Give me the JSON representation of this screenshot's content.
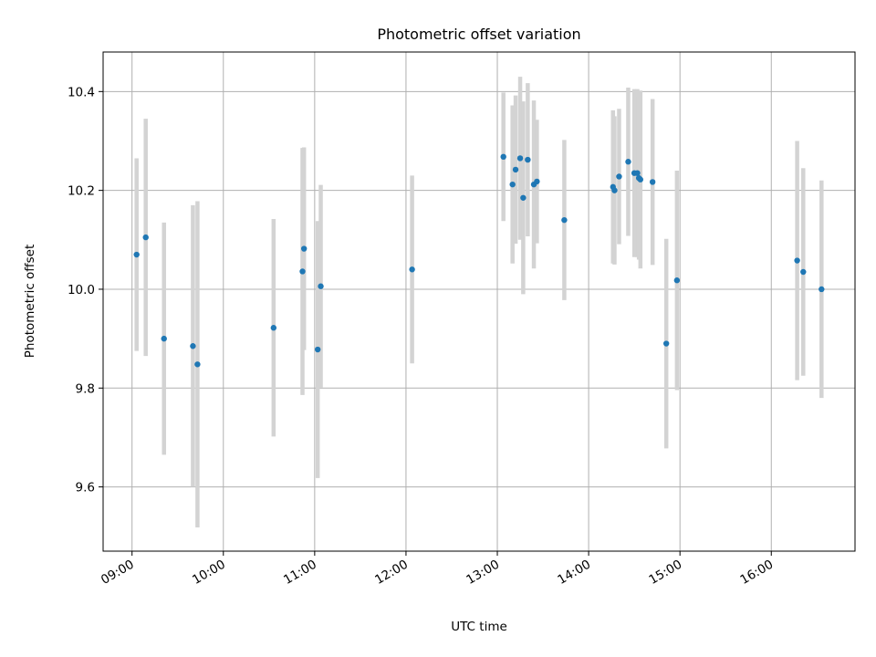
{
  "chart_data": {
    "type": "scatter",
    "title": "Photometric offset variation",
    "xlabel": "UTC time",
    "ylabel": "Photometric offset",
    "x_ticks": [
      "09:00",
      "10:00",
      "11:00",
      "12:00",
      "13:00",
      "14:00",
      "15:00",
      "16:00"
    ],
    "y_ticks": [
      "9.6",
      "9.8",
      "10.0",
      "10.2",
      "10.4"
    ],
    "xlim": [
      "08:41",
      "16:55"
    ],
    "ylim": [
      9.47,
      10.48
    ],
    "grid": true,
    "marker_color": "#1f77b4",
    "errorbar_color": "#d3d3d3",
    "points": [
      {
        "x": "09:03",
        "y": 10.07,
        "err": 0.195
      },
      {
        "x": "09:09",
        "y": 10.105,
        "err": 0.24
      },
      {
        "x": "09:21",
        "y": 9.9,
        "err": 0.235
      },
      {
        "x": "09:40",
        "y": 9.885,
        "err": 0.285
      },
      {
        "x": "09:43",
        "y": 9.848,
        "err": 0.33
      },
      {
        "x": "10:33",
        "y": 9.922,
        "err": 0.22
      },
      {
        "x": "10:52",
        "y": 10.036,
        "err": 0.25
      },
      {
        "x": "10:53",
        "y": 10.082,
        "err": 0.205
      },
      {
        "x": "11:02",
        "y": 9.878,
        "err": 0.26
      },
      {
        "x": "11:04",
        "y": 10.006,
        "err": 0.205
      },
      {
        "x": "12:04",
        "y": 10.04,
        "err": 0.19
      },
      {
        "x": "13:04",
        "y": 10.268,
        "err": 0.13
      },
      {
        "x": "13:10",
        "y": 10.212,
        "err": 0.16
      },
      {
        "x": "13:12",
        "y": 10.242,
        "err": 0.15
      },
      {
        "x": "13:15",
        "y": 10.265,
        "err": 0.165
      },
      {
        "x": "13:17",
        "y": 10.185,
        "err": 0.195
      },
      {
        "x": "13:20",
        "y": 10.262,
        "err": 0.155
      },
      {
        "x": "13:24",
        "y": 10.212,
        "err": 0.17
      },
      {
        "x": "13:26",
        "y": 10.218,
        "err": 0.125
      },
      {
        "x": "13:44",
        "y": 10.14,
        "err": 0.162
      },
      {
        "x": "14:16",
        "y": 10.207,
        "err": 0.155
      },
      {
        "x": "14:17",
        "y": 10.2,
        "err": 0.15
      },
      {
        "x": "14:20",
        "y": 10.228,
        "err": 0.137
      },
      {
        "x": "14:26",
        "y": 10.258,
        "err": 0.15
      },
      {
        "x": "14:30",
        "y": 10.235,
        "err": 0.17
      },
      {
        "x": "14:32",
        "y": 10.235,
        "err": 0.17
      },
      {
        "x": "14:33",
        "y": 10.225,
        "err": 0.165
      },
      {
        "x": "14:34",
        "y": 10.222,
        "err": 0.18
      },
      {
        "x": "14:42",
        "y": 10.217,
        "err": 0.168
      },
      {
        "x": "14:51",
        "y": 9.89,
        "err": 0.212
      },
      {
        "x": "14:58",
        "y": 10.018,
        "err": 0.222
      },
      {
        "x": "16:17",
        "y": 10.058,
        "err": 0.242
      },
      {
        "x": "16:21",
        "y": 10.035,
        "err": 0.21
      },
      {
        "x": "16:33",
        "y": 10.0,
        "err": 0.22
      }
    ]
  }
}
